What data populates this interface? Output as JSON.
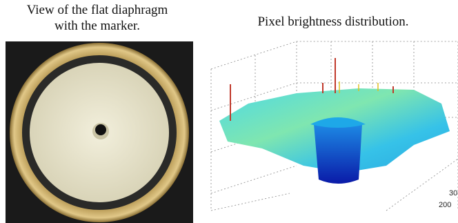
{
  "left_panel": {
    "caption": [
      "View of the flat diaphragm",
      "with the marker."
    ]
  },
  "right_panel": {
    "caption": "Pixel brightness distribution.",
    "tick_labels": [
      "30",
      "200"
    ]
  }
}
